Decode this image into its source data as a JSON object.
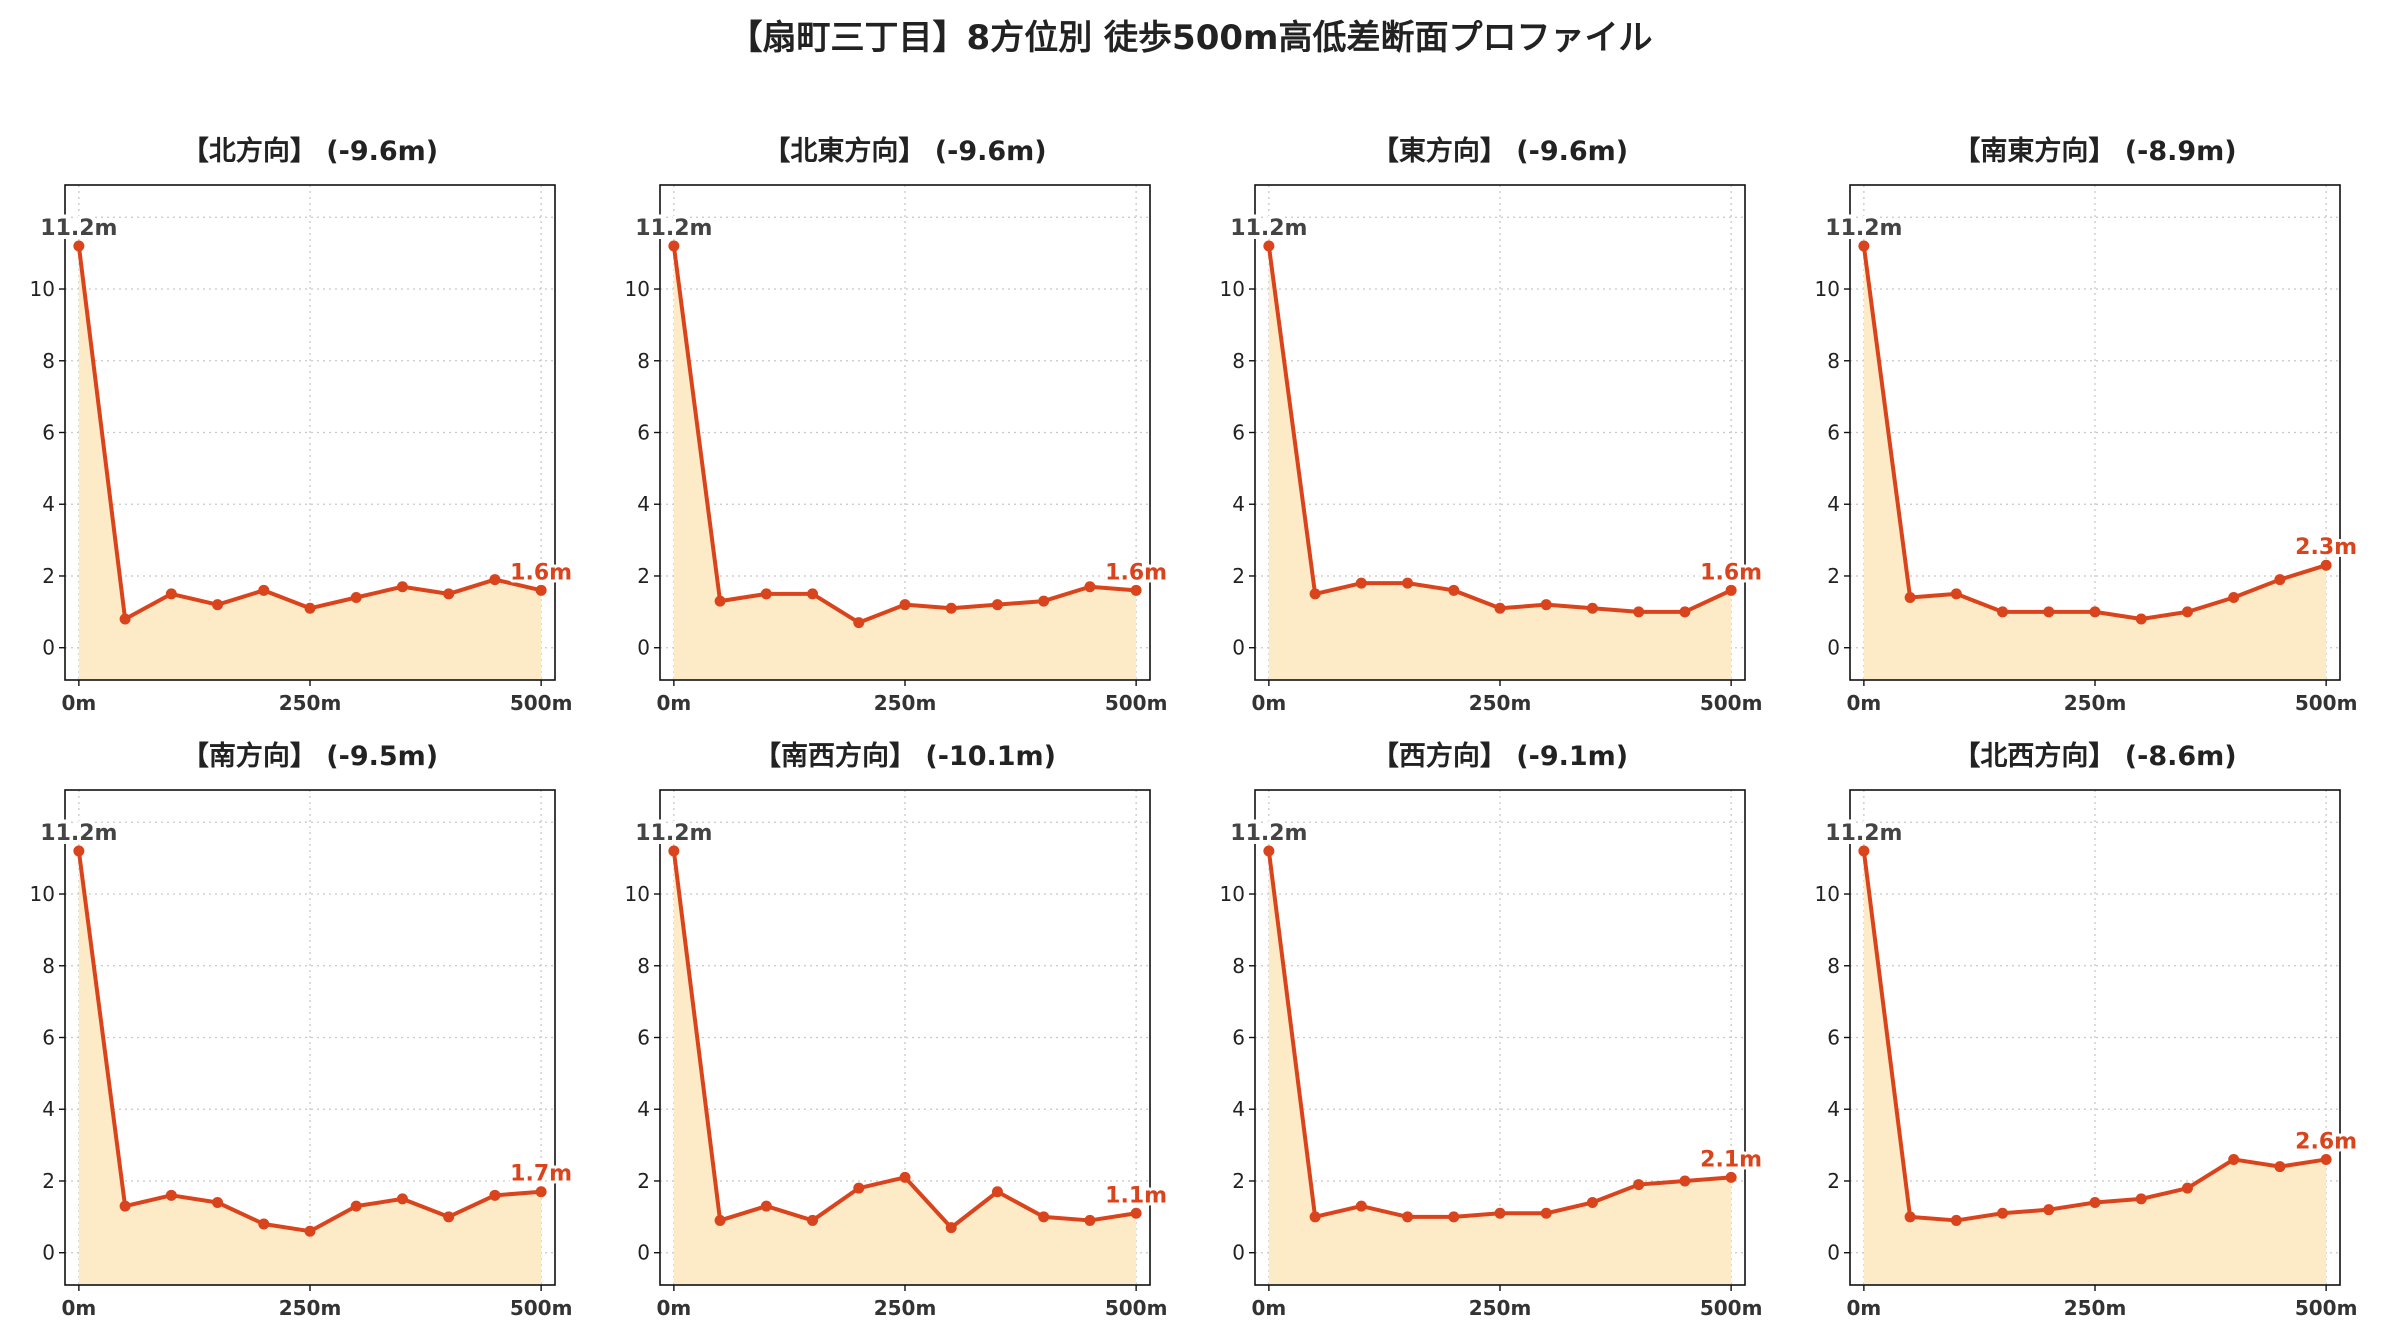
{
  "title": "【扇町三丁目】8方位別 徒歩500m高低差断面プロファイル",
  "colors": {
    "line": "#d9441c",
    "fill": "#fdebc8",
    "grid": "#c8c8c8",
    "start_label": "#444444",
    "end_label": "#d9441c"
  },
  "chart_data": [
    {
      "type": "area",
      "title": "【北方向】 (-9.6m)",
      "x": [
        0,
        50,
        100,
        150,
        200,
        250,
        300,
        350,
        400,
        450,
        500
      ],
      "values": [
        11.2,
        0.8,
        1.5,
        1.2,
        1.6,
        1.1,
        1.4,
        1.7,
        1.5,
        1.9,
        1.6
      ],
      "xtick_labels": [
        "0m",
        "250m",
        "500m"
      ],
      "yticks": [
        0,
        2,
        4,
        6,
        8,
        10
      ],
      "ylim": [
        -0.9,
        12.9
      ],
      "start_label": "11.2m",
      "end_label": "1.6m",
      "grid": true
    },
    {
      "type": "area",
      "title": "【北東方向】 (-9.6m)",
      "x": [
        0,
        50,
        100,
        150,
        200,
        250,
        300,
        350,
        400,
        450,
        500
      ],
      "values": [
        11.2,
        1.3,
        1.5,
        1.5,
        0.7,
        1.2,
        1.1,
        1.2,
        1.3,
        1.7,
        1.6
      ],
      "xtick_labels": [
        "0m",
        "250m",
        "500m"
      ],
      "yticks": [
        0,
        2,
        4,
        6,
        8,
        10
      ],
      "ylim": [
        -0.9,
        12.9
      ],
      "start_label": "11.2m",
      "end_label": "1.6m",
      "grid": true
    },
    {
      "type": "area",
      "title": "【東方向】 (-9.6m)",
      "x": [
        0,
        50,
        100,
        150,
        200,
        250,
        300,
        350,
        400,
        450,
        500
      ],
      "values": [
        11.2,
        1.5,
        1.8,
        1.8,
        1.6,
        1.1,
        1.2,
        1.1,
        1.0,
        1.0,
        1.6
      ],
      "xtick_labels": [
        "0m",
        "250m",
        "500m"
      ],
      "yticks": [
        0,
        2,
        4,
        6,
        8,
        10
      ],
      "ylim": [
        -0.9,
        12.9
      ],
      "start_label": "11.2m",
      "end_label": "1.6m",
      "grid": true
    },
    {
      "type": "area",
      "title": "【南東方向】 (-8.9m)",
      "x": [
        0,
        50,
        100,
        150,
        200,
        250,
        300,
        350,
        400,
        450,
        500
      ],
      "values": [
        11.2,
        1.4,
        1.5,
        1.0,
        1.0,
        1.0,
        0.8,
        1.0,
        1.4,
        1.9,
        2.3
      ],
      "xtick_labels": [
        "0m",
        "250m",
        "500m"
      ],
      "yticks": [
        0,
        2,
        4,
        6,
        8,
        10
      ],
      "ylim": [
        -0.9,
        12.9
      ],
      "start_label": "11.2m",
      "end_label": "2.3m",
      "grid": true
    },
    {
      "type": "area",
      "title": "【南方向】 (-9.5m)",
      "x": [
        0,
        50,
        100,
        150,
        200,
        250,
        300,
        350,
        400,
        450,
        500
      ],
      "values": [
        11.2,
        1.3,
        1.6,
        1.4,
        0.8,
        0.6,
        1.3,
        1.5,
        1.0,
        1.6,
        1.7
      ],
      "xtick_labels": [
        "0m",
        "250m",
        "500m"
      ],
      "yticks": [
        0,
        2,
        4,
        6,
        8,
        10
      ],
      "ylim": [
        -0.9,
        12.9
      ],
      "start_label": "11.2m",
      "end_label": "1.7m",
      "grid": true
    },
    {
      "type": "area",
      "title": "【南西方向】 (-10.1m)",
      "x": [
        0,
        50,
        100,
        150,
        200,
        250,
        300,
        350,
        400,
        450,
        500
      ],
      "values": [
        11.2,
        0.9,
        1.3,
        0.9,
        1.8,
        2.1,
        0.7,
        1.7,
        1.0,
        0.9,
        1.1
      ],
      "xtick_labels": [
        "0m",
        "250m",
        "500m"
      ],
      "yticks": [
        0,
        2,
        4,
        6,
        8,
        10
      ],
      "ylim": [
        -0.9,
        12.9
      ],
      "start_label": "11.2m",
      "end_label": "1.1m",
      "grid": true
    },
    {
      "type": "area",
      "title": "【西方向】 (-9.1m)",
      "x": [
        0,
        50,
        100,
        150,
        200,
        250,
        300,
        350,
        400,
        450,
        500
      ],
      "values": [
        11.2,
        1.0,
        1.3,
        1.0,
        1.0,
        1.1,
        1.1,
        1.4,
        1.9,
        2.0,
        2.1
      ],
      "xtick_labels": [
        "0m",
        "250m",
        "500m"
      ],
      "yticks": [
        0,
        2,
        4,
        6,
        8,
        10
      ],
      "ylim": [
        -0.9,
        12.9
      ],
      "start_label": "11.2m",
      "end_label": "2.1m",
      "grid": true
    },
    {
      "type": "area",
      "title": "【北西方向】 (-8.6m)",
      "x": [
        0,
        50,
        100,
        150,
        200,
        250,
        300,
        350,
        400,
        450,
        500
      ],
      "values": [
        11.2,
        1.0,
        0.9,
        1.1,
        1.2,
        1.4,
        1.5,
        1.8,
        2.6,
        2.4,
        2.6
      ],
      "xtick_labels": [
        "0m",
        "250m",
        "500m"
      ],
      "yticks": [
        0,
        2,
        4,
        6,
        8,
        10
      ],
      "ylim": [
        -0.9,
        12.9
      ],
      "start_label": "11.2m",
      "end_label": "2.6m",
      "grid": true
    }
  ]
}
